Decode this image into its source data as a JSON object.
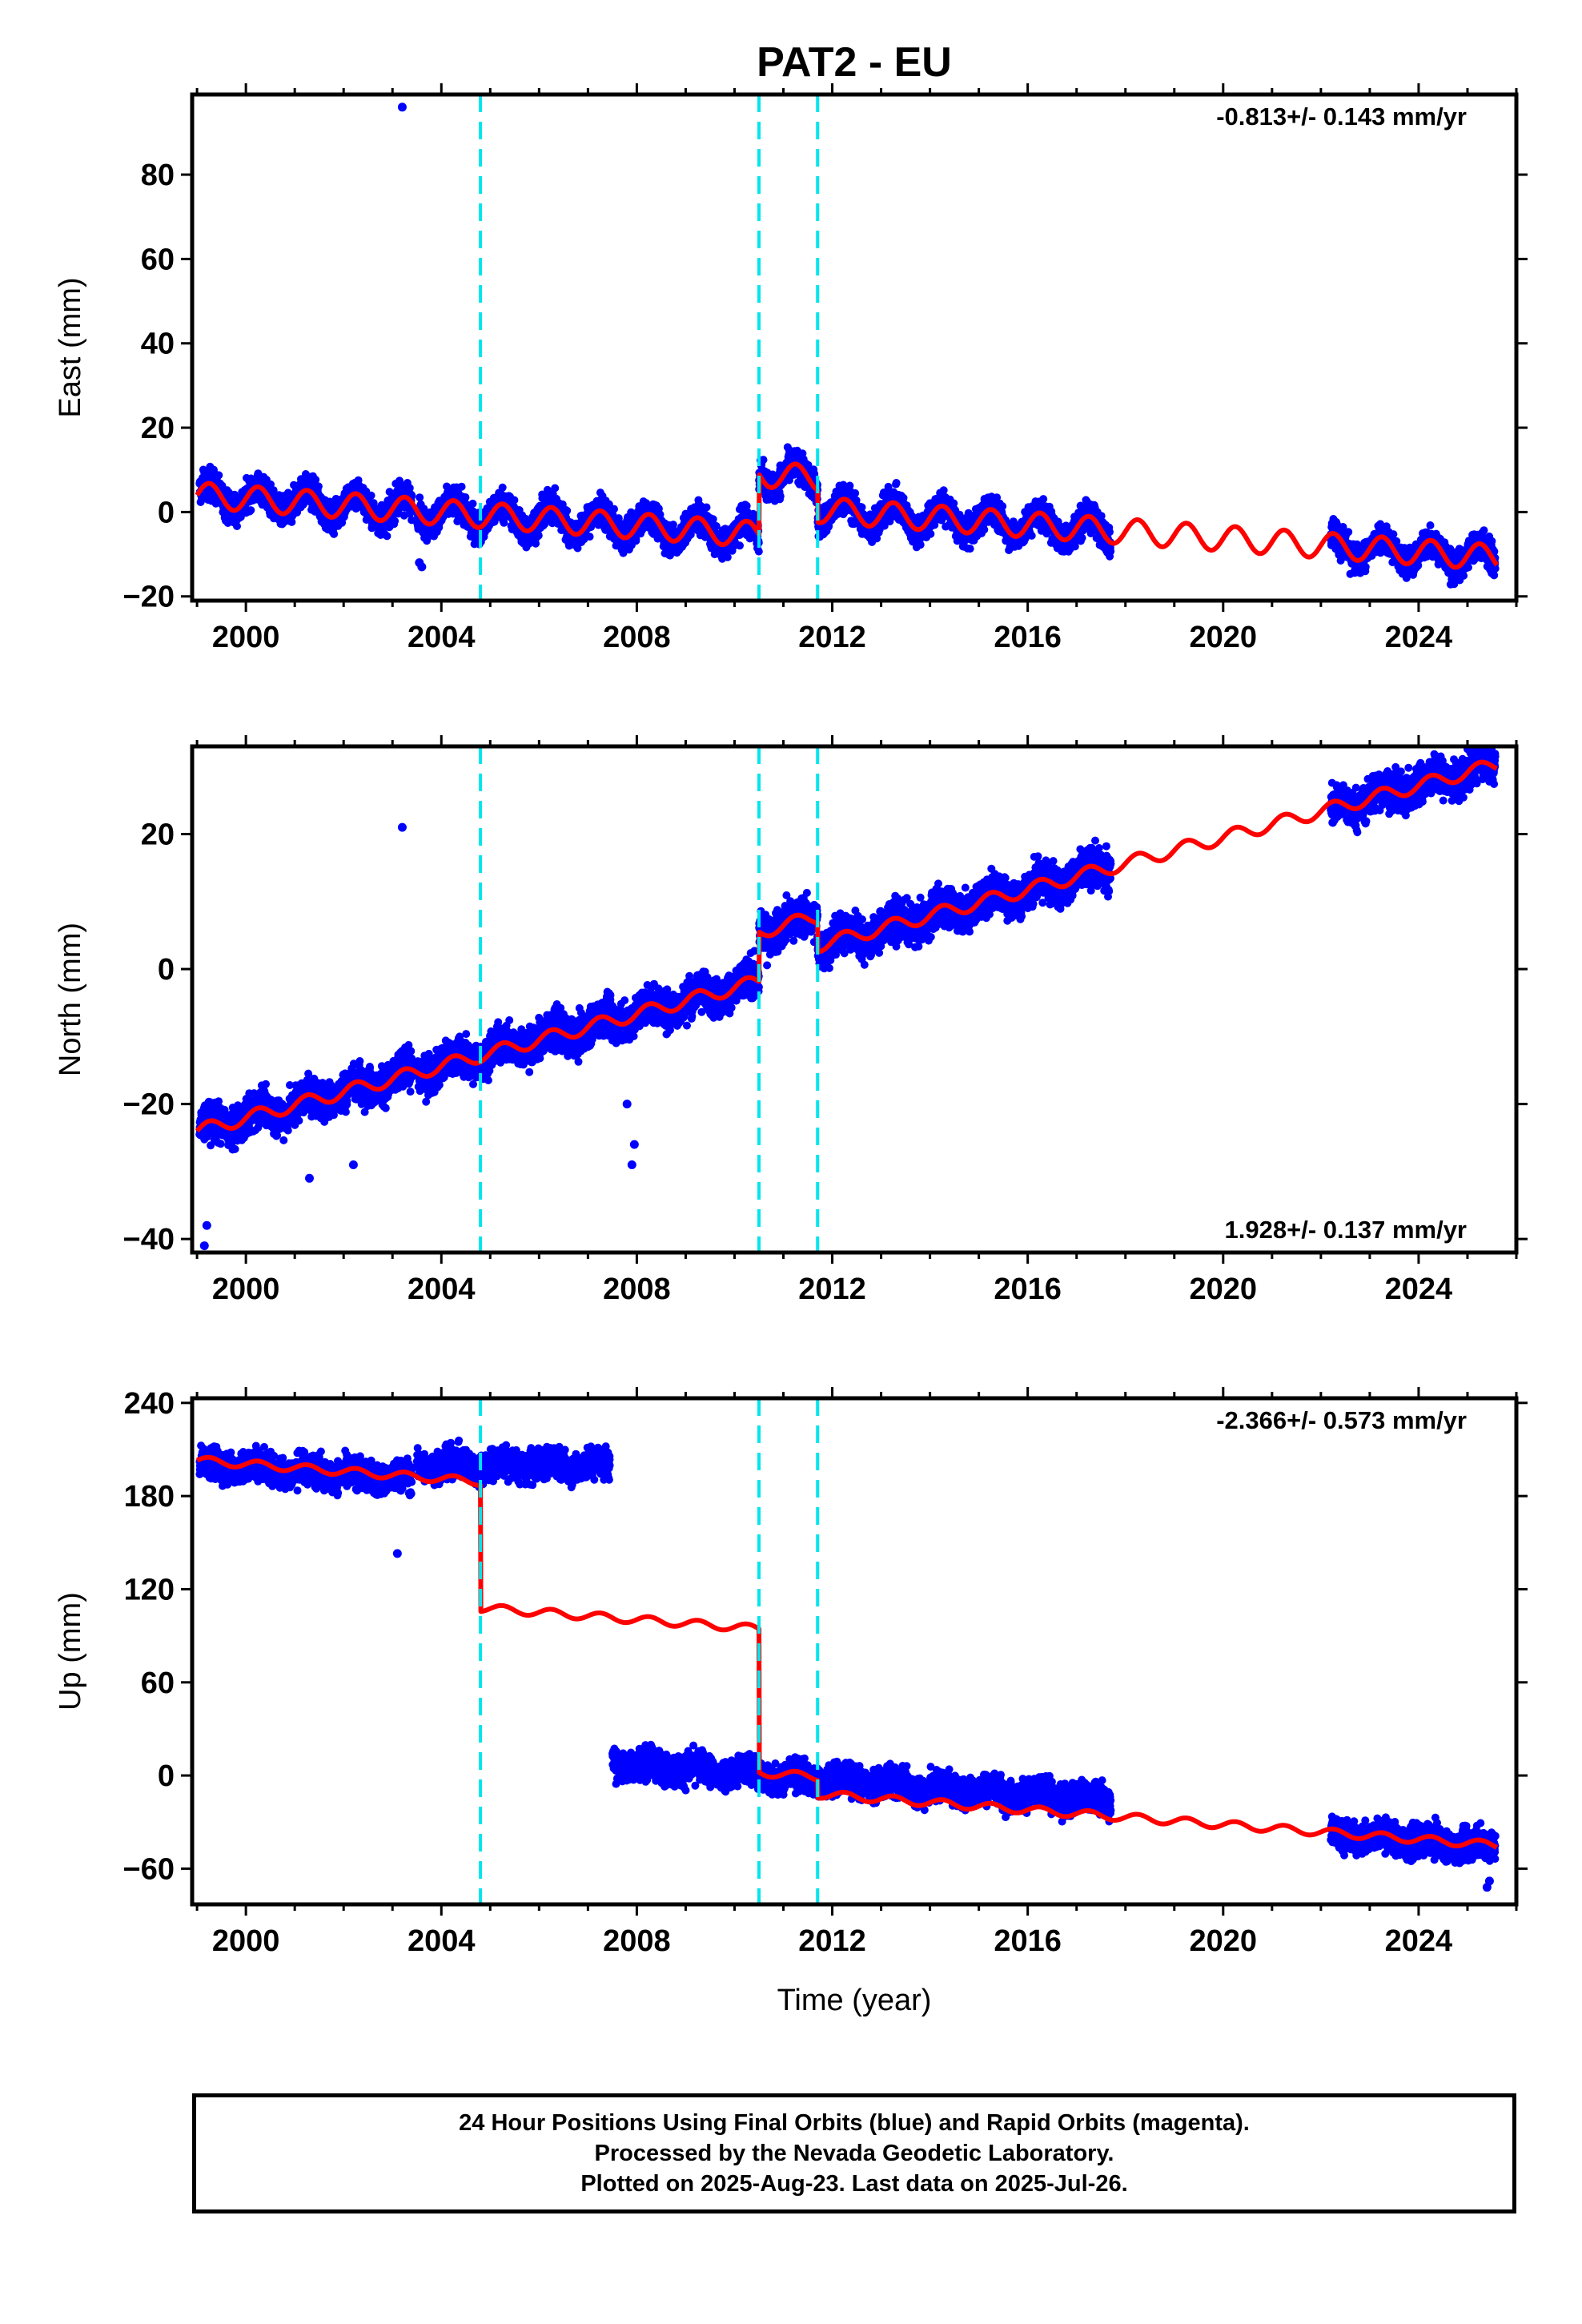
{
  "title": "PAT2 - EU",
  "xlabel": "Time (year)",
  "footer": [
    "24 Hour Positions Using Final Orbits (blue) and Rapid Orbits (magenta).",
    "Processed by the Nevada Geodetic Laboratory.",
    "Plotted on 2025-Aug-23. Last data on 2025-Jul-26."
  ],
  "colors": {
    "data": "#0000ff",
    "model": "#ff0000",
    "breaks": "#00e5ee",
    "frame": "#000000"
  },
  "chart_data": [
    {
      "type": "scatter",
      "name": "east",
      "ylabel": "East (mm)",
      "rate_text": "-0.813+/- 0.143 mm/yr",
      "rate_position": "top-right",
      "xlim": [
        1998.9,
        2026.0
      ],
      "ylim": [
        -21,
        99
      ],
      "xticks": [
        2000,
        2004,
        2008,
        2012,
        2016,
        2020,
        2024
      ],
      "yticks": [
        -20,
        0,
        20,
        40,
        60,
        80
      ],
      "grid": false,
      "vertical_breaks": [
        2004.8,
        2010.5,
        2011.7
      ],
      "data_segments": [
        [
          1999.05,
          2003.4
        ],
        [
          2003.5,
          2017.7
        ],
        [
          2022.2,
          2025.57
        ]
      ],
      "outliers": [
        [
          2003.2,
          96
        ],
        [
          2003.55,
          -12
        ],
        [
          2003.6,
          -13
        ]
      ],
      "model": {
        "rate": -0.813,
        "seasonal_amplitude": 3.0,
        "offsets": [
          {
            "start": 1999.0,
            "end": 2010.5,
            "value_at_start": 4.0
          },
          {
            "start": 2010.5,
            "end": 2011.7,
            "value_at_start": 9.0
          },
          {
            "start": 2011.7,
            "end": 2025.6,
            "value_at_start": 0.5
          }
        ]
      },
      "scatter_noise": 2.5
    },
    {
      "type": "scatter",
      "name": "north",
      "ylabel": "North (mm)",
      "rate_text": "1.928+/- 0.137 mm/yr",
      "rate_position": "bottom-right",
      "xlim": [
        1998.9,
        2026.0
      ],
      "ylim": [
        -42,
        33
      ],
      "xticks": [
        2000,
        2004,
        2008,
        2012,
        2016,
        2020,
        2024
      ],
      "yticks": [
        -40,
        -20,
        0,
        20
      ],
      "grid": false,
      "vertical_breaks": [
        2004.8,
        2010.5,
        2011.7
      ],
      "data_segments": [
        [
          1999.05,
          2003.4
        ],
        [
          2003.5,
          2017.7
        ],
        [
          2022.2,
          2025.57
        ]
      ],
      "outliers": [
        [
          2003.2,
          21
        ],
        [
          1999.15,
          -41
        ],
        [
          1999.2,
          -38
        ],
        [
          2007.9,
          -29
        ],
        [
          2007.95,
          -26
        ],
        [
          2007.8,
          -20
        ],
        [
          2001.3,
          -31
        ],
        [
          2002.2,
          -29
        ]
      ],
      "model": {
        "rate": 1.928,
        "seasonal_amplitude": 1.0,
        "offsets": [
          {
            "start": 1999.0,
            "end": 2010.5,
            "value_at_start": -24.0
          },
          {
            "start": 2010.5,
            "end": 2011.7,
            "value_at_start": 5.5
          },
          {
            "start": 2011.7,
            "end": 2025.6,
            "value_at_start": 3.5
          }
        ]
      },
      "scatter_noise": 2.0
    },
    {
      "type": "scatter",
      "name": "up",
      "ylabel": "Up (mm)",
      "rate_text": "-2.366+/- 0.573 mm/yr",
      "rate_position": "top-right",
      "xlim": [
        1998.9,
        2026.0
      ],
      "ylim": [
        -83,
        243
      ],
      "xticks": [
        2000,
        2004,
        2008,
        2012,
        2016,
        2020,
        2024
      ],
      "yticks": [
        -60,
        0,
        60,
        120,
        180,
        240
      ],
      "grid": false,
      "vertical_breaks": [
        2004.8,
        2010.5,
        2011.7
      ],
      "data_segments": [
        {
          "range": [
            1999.05,
            2003.4
          ],
          "base": 201,
          "rate": -2.4
        },
        {
          "range": [
            2003.5,
            2007.45
          ],
          "base": 200,
          "rate": 0.0
        },
        {
          "range": [
            2007.5,
            2017.7
          ],
          "base": 8,
          "rate": -2.4
        },
        {
          "range": [
            2022.2,
            2025.57
          ],
          "base": -38,
          "rate": -2.4
        }
      ],
      "outliers": [
        [
          2003.1,
          143
        ],
        [
          2025.4,
          -72
        ],
        [
          2025.45,
          -68
        ]
      ],
      "model": {
        "rate": -2.366,
        "seasonal_amplitude": 2.5,
        "offsets": [
          {
            "start": 1999.0,
            "end": 2004.8,
            "value_at_start": 203.0
          },
          {
            "start": 2004.8,
            "end": 2010.5,
            "value_at_start": 108.0
          },
          {
            "start": 2010.5,
            "end": 2011.7,
            "value_at_start": 2.0
          },
          {
            "start": 2011.7,
            "end": 2025.6,
            "value_at_start": -12.0
          }
        ]
      },
      "scatter_noise": 7.0
    }
  ]
}
